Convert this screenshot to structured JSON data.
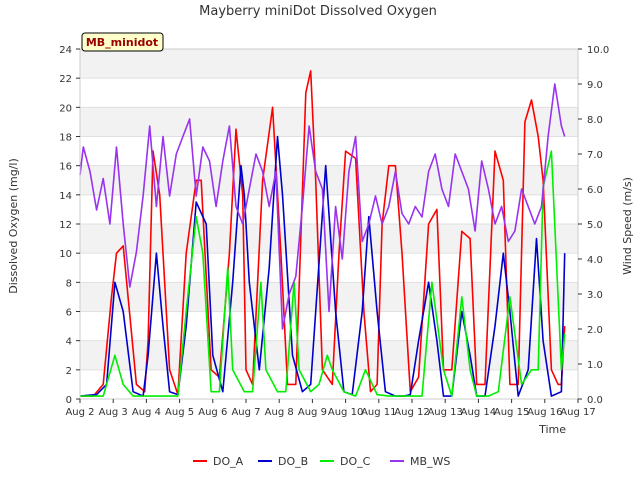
{
  "chart_data": {
    "type": "line",
    "title": "Mayberry miniDot Dissolved Oxygen",
    "site_label": "MB_minidot",
    "xlabel": "Time",
    "ylabel": "Dissolved Oxygen (mg/l)",
    "y2label": "Wind Speed (m/s)",
    "xlim": [
      0,
      15
    ],
    "ylim": [
      0,
      24
    ],
    "y2lim": [
      0,
      10
    ],
    "x_ticks": [
      0,
      1,
      2,
      3,
      4,
      5,
      6,
      7,
      8,
      9,
      10,
      11,
      12,
      13,
      14,
      15
    ],
    "x_tick_labels": [
      "Aug 2",
      "Aug 3",
      "Aug 4",
      "Aug 5",
      "Aug 6",
      "Aug 7",
      "Aug 8",
      "Aug 9",
      "Aug 10",
      "Aug 11",
      "Aug 12",
      "Aug 13",
      "Aug 14",
      "Aug 15",
      "Aug 16",
      "Aug 17"
    ],
    "y_ticks": [
      0,
      2,
      4,
      6,
      8,
      10,
      12,
      14,
      16,
      18,
      20,
      22,
      24
    ],
    "y_tick_labels": [
      "0",
      "2",
      "4",
      "6",
      "8",
      "10",
      "12",
      "14",
      "16",
      "18",
      "20",
      "22",
      "24"
    ],
    "y2_ticks": [
      0,
      1,
      2,
      3,
      4,
      5,
      6,
      7,
      8,
      9,
      10
    ],
    "y2_tick_labels": [
      "0.0",
      "1.0",
      "2.0",
      "3.0",
      "4.0",
      "5.0",
      "6.0",
      "7.0",
      "8.0",
      "9.0",
      "10.0"
    ],
    "grid": "horizontal bands",
    "legend_position": "bottom",
    "series": [
      {
        "name": "DO_A",
        "axis": "left",
        "color": "#ff0000",
        "x": [
          0.0,
          0.4,
          0.7,
          0.95,
          1.1,
          1.3,
          1.7,
          1.95,
          2.05,
          2.2,
          2.4,
          2.7,
          2.95,
          3.2,
          3.5,
          3.65,
          3.95,
          4.2,
          4.5,
          4.7,
          4.9,
          5.0,
          5.2,
          5.5,
          5.8,
          6.05,
          6.25,
          6.5,
          6.8,
          6.95,
          7.1,
          7.3,
          7.6,
          7.8,
          8.0,
          8.3,
          8.55,
          8.75,
          8.95,
          9.1,
          9.3,
          9.5,
          9.7,
          9.95,
          10.2,
          10.5,
          10.75,
          10.95,
          11.2,
          11.5,
          11.75,
          11.95,
          12.2,
          12.5,
          12.75,
          12.95,
          13.2,
          13.4,
          13.6,
          13.8,
          13.95,
          14.2,
          14.4,
          14.5,
          14.6
        ],
        "y": [
          0.2,
          0.2,
          1.0,
          7.0,
          10.0,
          10.5,
          1.0,
          0.5,
          4.0,
          17.0,
          14.0,
          2.0,
          0.3,
          10.0,
          15.0,
          15.0,
          2.0,
          1.5,
          10.0,
          18.5,
          14.0,
          2.0,
          1.0,
          15.0,
          20.0,
          10.0,
          1.0,
          1.0,
          21.0,
          22.5,
          15.0,
          2.0,
          1.0,
          10.0,
          17.0,
          16.5,
          6.0,
          0.5,
          1.0,
          12.0,
          16.0,
          16.0,
          10.0,
          0.5,
          1.5,
          12.0,
          13.0,
          2.0,
          2.0,
          11.5,
          11.0,
          1.0,
          1.0,
          17.0,
          15.0,
          1.0,
          1.0,
          19.0,
          20.5,
          18.0,
          15.0,
          2.0,
          1.0,
          1.0,
          5.0
        ]
      },
      {
        "name": "DO_B",
        "axis": "left",
        "color": "#0000cc",
        "x": [
          0.0,
          0.5,
          0.8,
          1.05,
          1.3,
          1.6,
          1.9,
          2.05,
          2.3,
          2.5,
          2.7,
          2.95,
          3.2,
          3.5,
          3.8,
          4.0,
          4.3,
          4.6,
          4.85,
          4.95,
          5.1,
          5.4,
          5.7,
          5.95,
          6.1,
          6.4,
          6.7,
          6.95,
          7.1,
          7.4,
          7.7,
          7.95,
          8.2,
          8.5,
          8.7,
          8.95,
          9.2,
          9.5,
          9.75,
          9.95,
          10.2,
          10.5,
          10.75,
          10.95,
          11.2,
          11.5,
          11.75,
          11.95,
          12.2,
          12.5,
          12.75,
          12.95,
          13.2,
          13.5,
          13.75,
          13.95,
          14.2,
          14.5,
          14.6
        ],
        "y": [
          0.2,
          0.3,
          1.0,
          8.0,
          6.0,
          0.5,
          0.2,
          3.0,
          10.0,
          5.0,
          0.5,
          0.3,
          5.0,
          13.5,
          12.0,
          3.0,
          0.5,
          8.0,
          16.0,
          14.0,
          8.0,
          2.0,
          9.0,
          18.0,
          14.0,
          3.0,
          0.5,
          1.0,
          6.0,
          16.0,
          6.0,
          0.5,
          0.3,
          6.0,
          12.5,
          6.0,
          0.5,
          0.2,
          0.2,
          0.3,
          4.0,
          8.0,
          4.0,
          0.2,
          0.2,
          6.0,
          3.0,
          0.2,
          0.2,
          5.0,
          10.0,
          6.0,
          0.2,
          2.0,
          11.0,
          4.0,
          0.2,
          0.5,
          10.0
        ]
      },
      {
        "name": "DO_C",
        "axis": "left",
        "color": "#00ee00",
        "x": [
          0.0,
          0.7,
          1.05,
          1.3,
          1.6,
          2.0,
          2.3,
          2.6,
          2.95,
          3.2,
          3.5,
          3.7,
          3.95,
          4.2,
          4.45,
          4.6,
          4.95,
          5.2,
          5.45,
          5.6,
          5.95,
          6.2,
          6.45,
          6.6,
          6.95,
          7.2,
          7.45,
          7.6,
          7.95,
          8.3,
          8.6,
          8.95,
          9.3,
          9.6,
          9.95,
          10.3,
          10.6,
          10.95,
          11.2,
          11.5,
          11.75,
          11.95,
          12.3,
          12.6,
          12.95,
          13.3,
          13.6,
          13.8,
          13.95,
          14.2,
          14.5,
          14.6
        ],
        "y": [
          0.2,
          0.2,
          3.0,
          1.0,
          0.2,
          0.2,
          0.2,
          0.2,
          0.2,
          6.0,
          12.5,
          10.0,
          0.5,
          0.5,
          9.0,
          2.0,
          0.5,
          0.5,
          8.0,
          2.0,
          0.5,
          0.5,
          8.0,
          2.0,
          0.5,
          1.0,
          3.0,
          2.0,
          0.5,
          0.2,
          2.0,
          0.3,
          0.2,
          0.2,
          0.2,
          0.2,
          8.0,
          2.0,
          0.2,
          7.0,
          2.0,
          0.2,
          0.2,
          0.5,
          7.0,
          1.0,
          2.0,
          2.0,
          14.5,
          17.0,
          2.0,
          4.5
        ]
      },
      {
        "name": "MB_WS",
        "axis": "right",
        "color": "#9933ee",
        "x": [
          0.0,
          0.1,
          0.3,
          0.5,
          0.7,
          0.9,
          1.1,
          1.3,
          1.5,
          1.7,
          1.9,
          2.1,
          2.3,
          2.5,
          2.7,
          2.9,
          3.1,
          3.3,
          3.5,
          3.7,
          3.9,
          4.1,
          4.3,
          4.5,
          4.7,
          4.9,
          5.1,
          5.3,
          5.5,
          5.7,
          5.9,
          6.1,
          6.3,
          6.5,
          6.7,
          6.9,
          7.1,
          7.3,
          7.5,
          7.7,
          7.9,
          8.1,
          8.3,
          8.5,
          8.7,
          8.9,
          9.1,
          9.3,
          9.5,
          9.7,
          9.9,
          10.1,
          10.3,
          10.5,
          10.7,
          10.9,
          11.1,
          11.3,
          11.5,
          11.7,
          11.9,
          12.1,
          12.3,
          12.5,
          12.7,
          12.9,
          13.1,
          13.3,
          13.5,
          13.7,
          13.9,
          14.1,
          14.3,
          14.5,
          14.6
        ],
        "y": [
          6.4,
          7.2,
          6.5,
          5.4,
          6.3,
          5.0,
          7.2,
          5.0,
          3.2,
          4.2,
          5.8,
          7.8,
          5.5,
          7.5,
          5.8,
          7.0,
          7.5,
          8.0,
          5.8,
          7.2,
          6.8,
          5.5,
          6.8,
          7.8,
          5.5,
          5.0,
          6.0,
          7.0,
          6.5,
          5.5,
          6.5,
          2.0,
          3.0,
          3.5,
          5.5,
          7.8,
          6.5,
          6.0,
          2.5,
          5.5,
          4.0,
          6.5,
          7.5,
          4.5,
          5.0,
          5.8,
          5.0,
          5.5,
          6.5,
          5.3,
          5.0,
          5.5,
          5.2,
          6.5,
          7.0,
          6.0,
          5.5,
          7.0,
          6.5,
          6.0,
          4.8,
          6.8,
          6.0,
          5.0,
          5.5,
          4.5,
          4.8,
          6.0,
          5.5,
          5.0,
          5.5,
          7.5,
          9.0,
          7.8,
          7.5
        ]
      }
    ]
  }
}
